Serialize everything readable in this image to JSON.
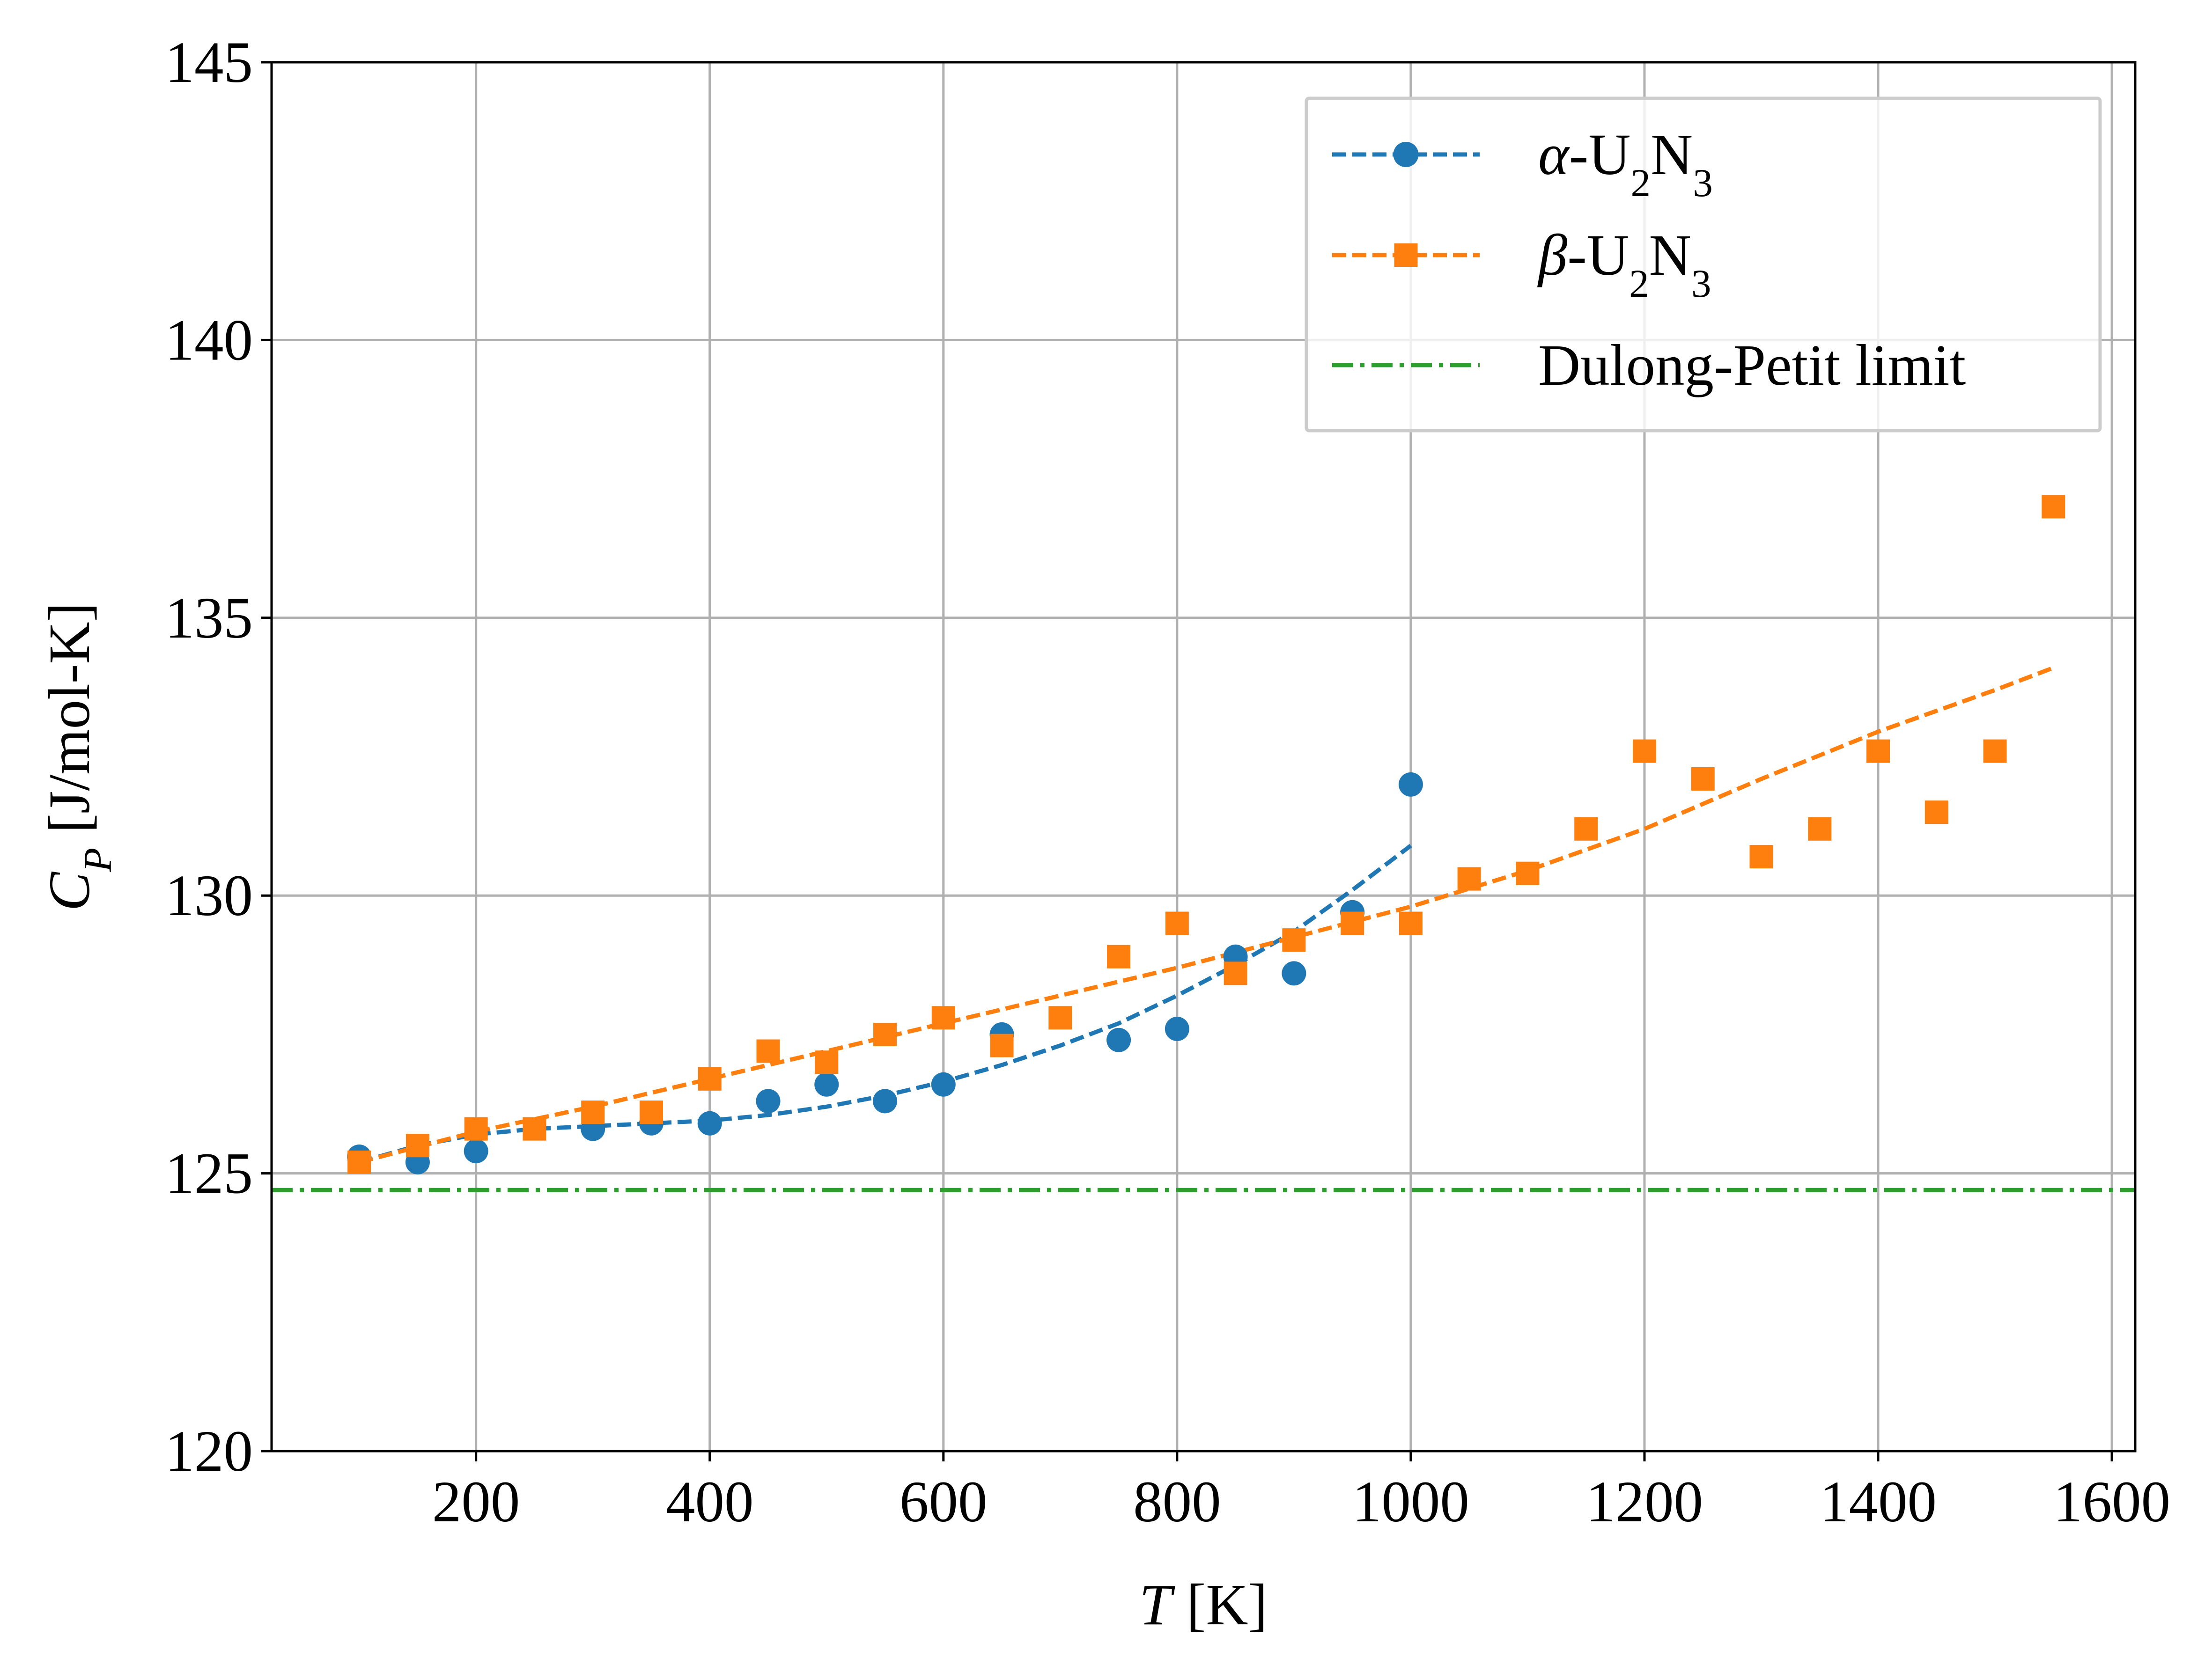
{
  "chart_data": {
    "type": "scatter",
    "xlabel": {
      "main": "T",
      "unit": " [K]"
    },
    "ylabel": {
      "main": "C",
      "sub": "P",
      "unit": " [J/mol-K]"
    },
    "xlim": [
      25,
      1620
    ],
    "ylim": [
      120,
      145
    ],
    "xticks": [
      200,
      400,
      600,
      800,
      1000,
      1200,
      1400,
      1600
    ],
    "yticks": [
      120,
      125,
      130,
      135,
      140,
      145
    ],
    "grid": true,
    "legend_position": "top-right",
    "colors": {
      "alpha": "#1f77b4",
      "beta": "#ff7f0e",
      "dulong": "#2ca02c",
      "grid": "#b0b0b0"
    },
    "series": [
      {
        "name": {
          "greek": "α",
          "pre": "-U",
          "sub1": "2",
          "mid": "N",
          "sub2": "3"
        },
        "marker": "circle",
        "color": "#1f77b4",
        "points": [
          [
            100,
            125.3
          ],
          [
            150,
            125.2
          ],
          [
            200,
            125.4
          ],
          [
            300,
            125.8
          ],
          [
            350,
            125.9
          ],
          [
            400,
            125.9
          ],
          [
            450,
            126.3
          ],
          [
            500,
            126.6
          ],
          [
            550,
            126.3
          ],
          [
            600,
            126.6
          ],
          [
            650,
            127.5
          ],
          [
            750,
            127.4
          ],
          [
            800,
            127.6
          ],
          [
            850,
            128.9
          ],
          [
            900,
            128.6
          ],
          [
            950,
            129.7
          ],
          [
            1000,
            132.0
          ]
        ],
        "fit": [
          [
            100,
            125.2
          ],
          [
            150,
            125.5
          ],
          [
            200,
            125.7
          ],
          [
            250,
            125.8
          ],
          [
            300,
            125.85
          ],
          [
            350,
            125.9
          ],
          [
            400,
            125.95
          ],
          [
            450,
            126.05
          ],
          [
            500,
            126.2
          ],
          [
            550,
            126.4
          ],
          [
            600,
            126.65
          ],
          [
            650,
            126.95
          ],
          [
            700,
            127.3
          ],
          [
            750,
            127.7
          ],
          [
            800,
            128.2
          ],
          [
            850,
            128.75
          ],
          [
            900,
            129.35
          ],
          [
            950,
            130.1
          ],
          [
            1000,
            130.9
          ]
        ]
      },
      {
        "name": {
          "greek": "β",
          "pre": "-U",
          "sub1": "2",
          "mid": "N",
          "sub2": "3"
        },
        "marker": "square",
        "color": "#ff7f0e",
        "points": [
          [
            100,
            125.2
          ],
          [
            150,
            125.5
          ],
          [
            200,
            125.8
          ],
          [
            250,
            125.8
          ],
          [
            300,
            126.1
          ],
          [
            350,
            126.1
          ],
          [
            400,
            126.7
          ],
          [
            450,
            127.2
          ],
          [
            500,
            127.0
          ],
          [
            550,
            127.5
          ],
          [
            600,
            127.8
          ],
          [
            650,
            127.3
          ],
          [
            700,
            127.8
          ],
          [
            750,
            128.9
          ],
          [
            800,
            129.5
          ],
          [
            850,
            128.6
          ],
          [
            900,
            129.2
          ],
          [
            950,
            129.5
          ],
          [
            1000,
            129.5
          ],
          [
            1050,
            130.3
          ],
          [
            1100,
            130.4
          ],
          [
            1150,
            131.2
          ],
          [
            1200,
            132.6
          ],
          [
            1250,
            132.1
          ],
          [
            1300,
            130.7
          ],
          [
            1350,
            131.2
          ],
          [
            1400,
            132.6
          ],
          [
            1450,
            131.5
          ],
          [
            1500,
            132.6
          ],
          [
            1550,
            137.0
          ]
        ],
        "fit": [
          [
            100,
            125.2
          ],
          [
            200,
            125.75
          ],
          [
            300,
            126.2
          ],
          [
            400,
            126.7
          ],
          [
            500,
            127.2
          ],
          [
            600,
            127.7
          ],
          [
            700,
            128.2
          ],
          [
            800,
            128.7
          ],
          [
            900,
            129.25
          ],
          [
            1000,
            129.8
          ],
          [
            1100,
            130.45
          ],
          [
            1200,
            131.2
          ],
          [
            1300,
            132.1
          ],
          [
            1400,
            132.95
          ],
          [
            1500,
            133.7
          ],
          [
            1550,
            134.1
          ]
        ]
      }
    ],
    "reference_line": {
      "name": "Dulong-Petit limit",
      "y": 124.7,
      "color": "#2ca02c",
      "style": "dashdot"
    }
  }
}
